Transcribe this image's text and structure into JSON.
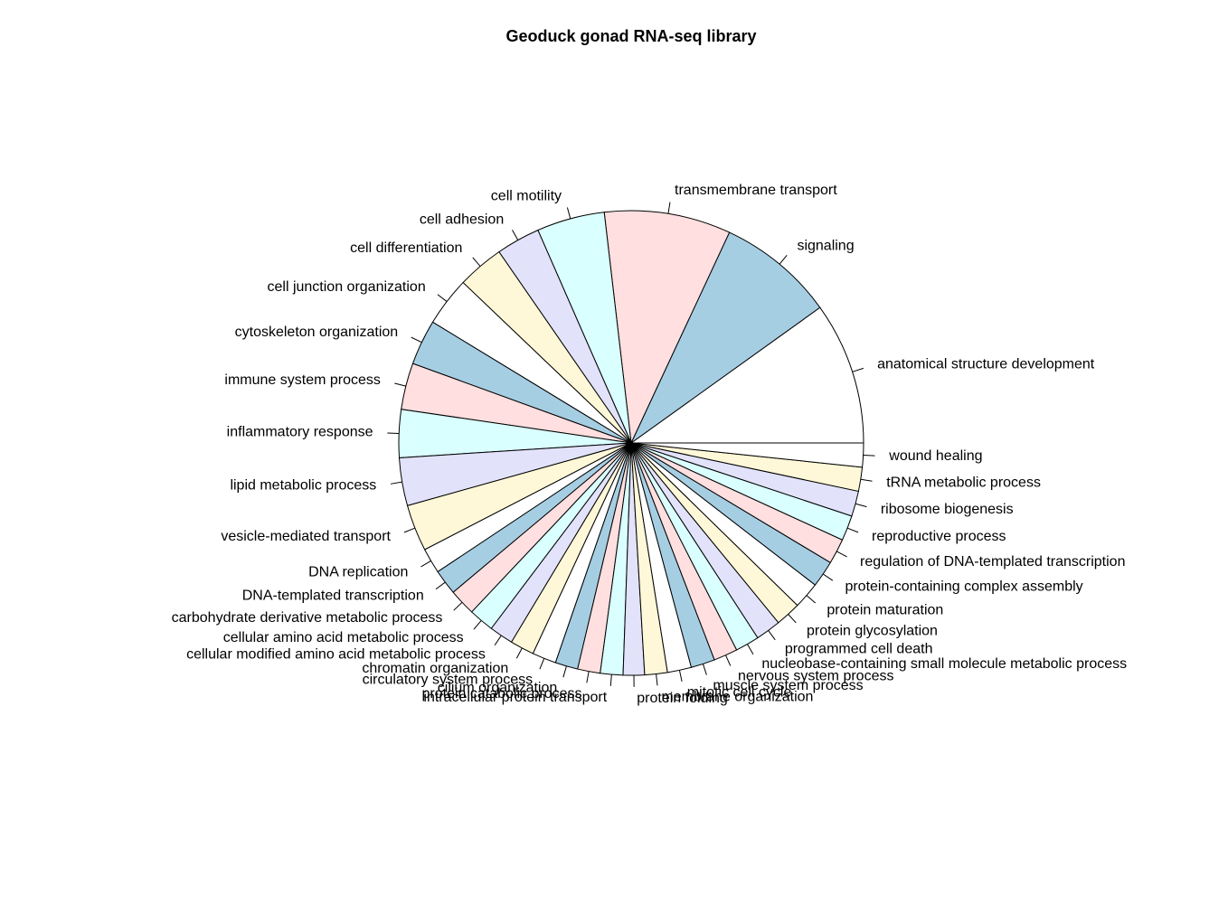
{
  "chart_data": {
    "type": "pie",
    "title": "Geoduck gonad RNA-seq library",
    "direction": "counterclockwise",
    "start_angle_deg": 0,
    "palette": [
      "#FFFFFF",
      "#A6CEE3",
      "#FFDFDF",
      "#DAFFFF",
      "#E2E2FB",
      "#FFF8D8"
    ],
    "slices": [
      {
        "label": "anatomical structure development",
        "value": 10.7
      },
      {
        "label": "signaling",
        "value": 8.8
      },
      {
        "label": "transmembrane transport",
        "value": 9.5
      },
      {
        "label": "cell motility",
        "value": 5.1
      },
      {
        "label": "cell adhesion",
        "value": 3.3
      },
      {
        "label": "cell differentiation",
        "value": 3.5
      },
      {
        "label": "cell junction organization",
        "value": 3.7
      },
      {
        "label": "cytoskeleton organization",
        "value": 3.4
      },
      {
        "label": "immune system process",
        "value": 3.5
      },
      {
        "label": "inflammatory response",
        "value": 3.6
      },
      {
        "label": "lipid metabolic process",
        "value": 3.6
      },
      {
        "label": "vesicle-mediated transport",
        "value": 3.5
      },
      {
        "label": "DNA replication",
        "value": 1.9
      },
      {
        "label": "DNA-templated transcription",
        "value": 1.9
      },
      {
        "label": "carbohydrate derivative metabolic process",
        "value": 2.0
      },
      {
        "label": "cellular amino acid metabolic process",
        "value": 1.9
      },
      {
        "label": "cellular modified amino acid metabolic process",
        "value": 1.8
      },
      {
        "label": "chromatin organization",
        "value": 1.8
      },
      {
        "label": "circulatory system process",
        "value": 1.8
      },
      {
        "label": "cilium organization",
        "value": 1.7
      },
      {
        "label": "protein catabolic process",
        "value": 1.7
      },
      {
        "label": "intracellular protein transport",
        "value": 1.7
      },
      {
        "label": "protein folding",
        "value": 1.6
      },
      {
        "label": "membrane organization",
        "value": 1.7
      },
      {
        "label": "mitotic cell cycle",
        "value": 1.8
      },
      {
        "label": "muscle system process",
        "value": 1.8
      },
      {
        "label": "nervous system process",
        "value": 1.8
      },
      {
        "label": "nucleobase-containing small molecule metabolic process",
        "value": 1.8
      },
      {
        "label": "programmed cell death",
        "value": 1.9
      },
      {
        "label": "protein glycosylation",
        "value": 1.9
      },
      {
        "label": "protein maturation",
        "value": 2.0
      },
      {
        "label": "protein-containing complex assembly",
        "value": 2.0
      },
      {
        "label": "regulation of DNA-templated transcription",
        "value": 1.9
      },
      {
        "label": "reproductive process",
        "value": 1.9
      },
      {
        "label": "ribosome biogenesis",
        "value": 1.9
      },
      {
        "label": "tRNA metabolic process",
        "value": 1.8
      },
      {
        "label": "wound healing",
        "value": 1.8
      }
    ]
  }
}
